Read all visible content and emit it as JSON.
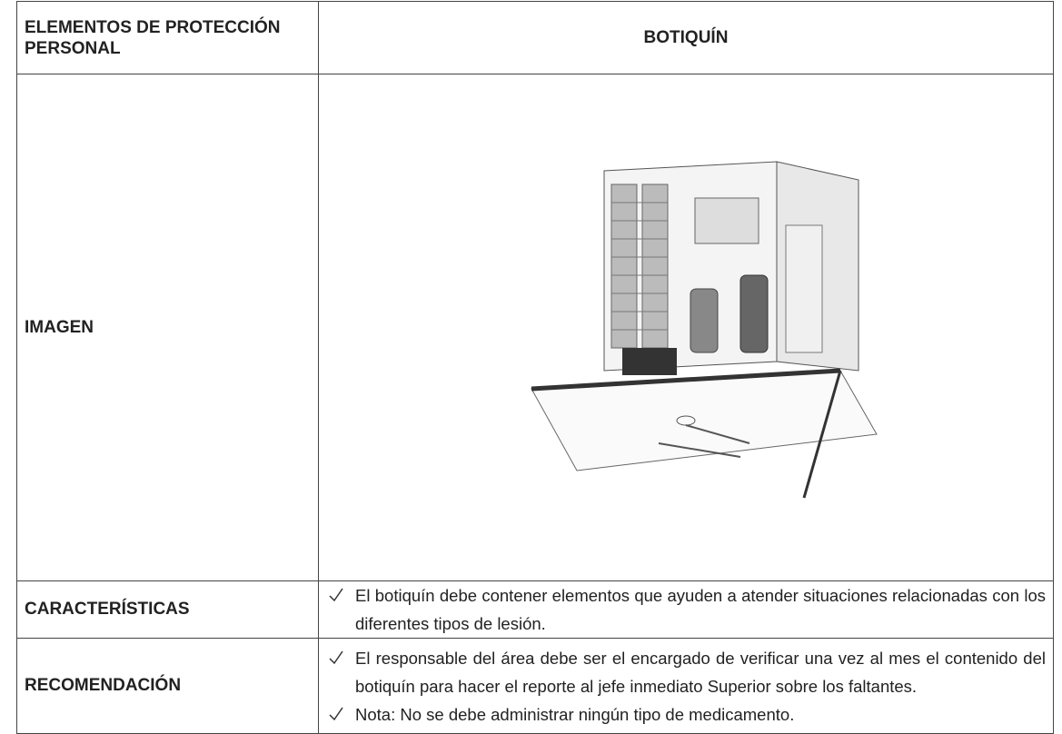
{
  "table": {
    "header": [
      "ELEMENTOS DE PROTECCIÓN PERSONAL",
      "BOTIQUÍN"
    ],
    "rows": [
      {
        "label": "IMAGEN"
      },
      {
        "label": "CARACTERÍSTICAS",
        "items": [
          "El botiquín debe contener elementos que ayuden a atender situaciones relacionadas con los diferentes tipos de lesión."
        ]
      },
      {
        "label": "RECOMENDACIÓN",
        "items": [
          "El responsable del área debe ser el encargado de verificar una vez al mes el contenido del botiquín para hacer el reporte al jefe inmediato Superior sobre los faltantes.",
          "Nota: No se debe administrar ningún tipo de medicamento."
        ]
      }
    ]
  }
}
